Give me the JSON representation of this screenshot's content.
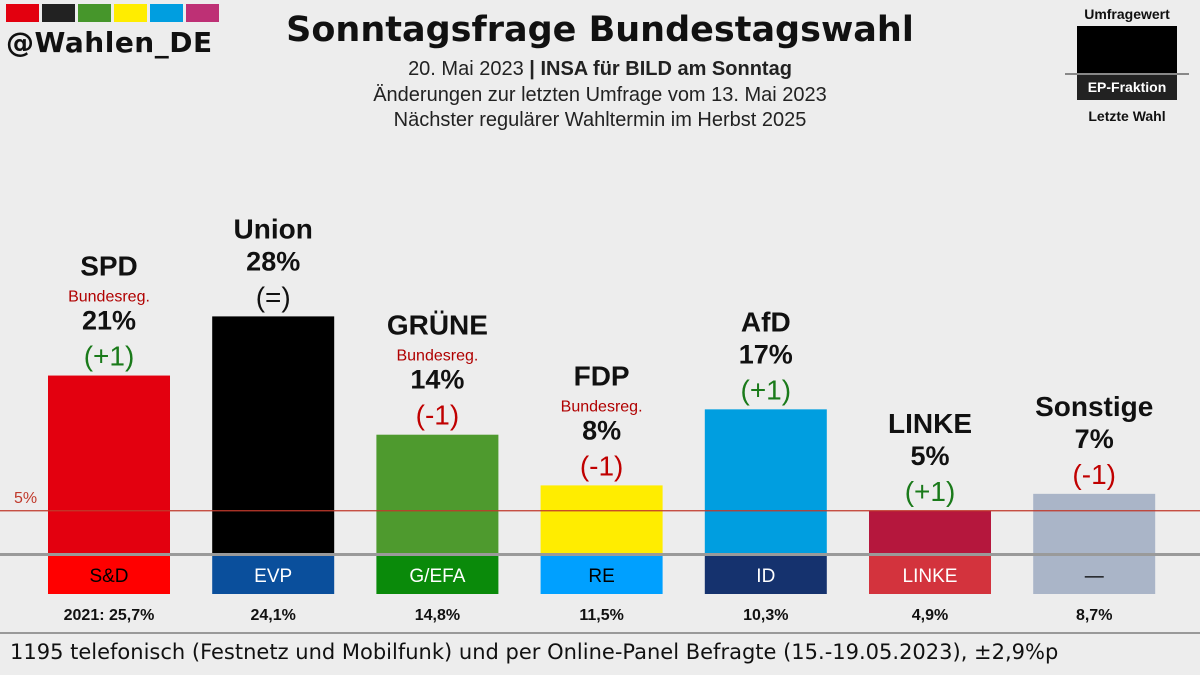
{
  "header": {
    "handle": "@Wahlen_DE",
    "stripe_colors": [
      "#e3000f",
      "#222222",
      "#46962b",
      "#ffed00",
      "#009ee0",
      "#be3075"
    ],
    "title": "Sonntagsfrage Bundestagswahl",
    "date": "20. Mai 2023",
    "separator": "|",
    "pollster": "INSA für BILD am Sonntag",
    "line2": "Änderungen zur letzten Umfrage vom 13. Mai 2023",
    "line3": "Nächster regulärer Wahltermin im Herbst 2025"
  },
  "legend": {
    "top": "Umfragewert",
    "middle": "EP-Fraktion",
    "bottom": "Letzte Wahl"
  },
  "footer": "1195 telefonisch (Festnetz und Mobilfunk) und per Online-Panel Befragte (15.-19.05.2023), ±2,9%p",
  "chart_data": {
    "type": "bar",
    "threshold": {
      "value": 5,
      "label": "5%"
    },
    "ylim": [
      0,
      30
    ],
    "categories": [
      "SPD",
      "Union",
      "GRÜNE",
      "FDP",
      "AfD",
      "LINKE",
      "Sonstige"
    ],
    "values": [
      21,
      28,
      14,
      8,
      17,
      5,
      7
    ],
    "value_labels": [
      "21%",
      "28%",
      "14%",
      "8%",
      "17%",
      "5%",
      "7%"
    ],
    "changes": [
      "(+1)",
      "(=)",
      "(-1)",
      "(-1)",
      "(+1)",
      "(+1)",
      "(-1)"
    ],
    "change_colors": [
      "#1a7a1a",
      "#111111",
      "#c00000",
      "#c00000",
      "#1a7a1a",
      "#1a7a1a",
      "#c00000"
    ],
    "government": [
      "Bundesreg.",
      "",
      "Bundesreg.",
      "Bundesreg.",
      "",
      "",
      ""
    ],
    "colors": [
      "#e3000f",
      "#000000",
      "#4e9a2e",
      "#ffed00",
      "#009ee0",
      "#b5173d",
      "#aab5c8"
    ],
    "ep_groups": [
      "S&D",
      "EVP",
      "G/EFA",
      "RE",
      "ID",
      "LINKE",
      "—"
    ],
    "ep_colors": [
      "#ff0000",
      "#0a4f9c",
      "#0a8a0a",
      "#00a0ff",
      "#15326e",
      "#d3333d",
      "#aab5c8"
    ],
    "ep_text_colors": [
      "#000000",
      "#ffffff",
      "#ffffff",
      "#000000",
      "#ffffff",
      "#ffffff",
      "#000000"
    ],
    "last_election": [
      "2021: 25,7%",
      "24,1%",
      "14,8%",
      "11,5%",
      "10,3%",
      "4,9%",
      "8,7%"
    ]
  }
}
